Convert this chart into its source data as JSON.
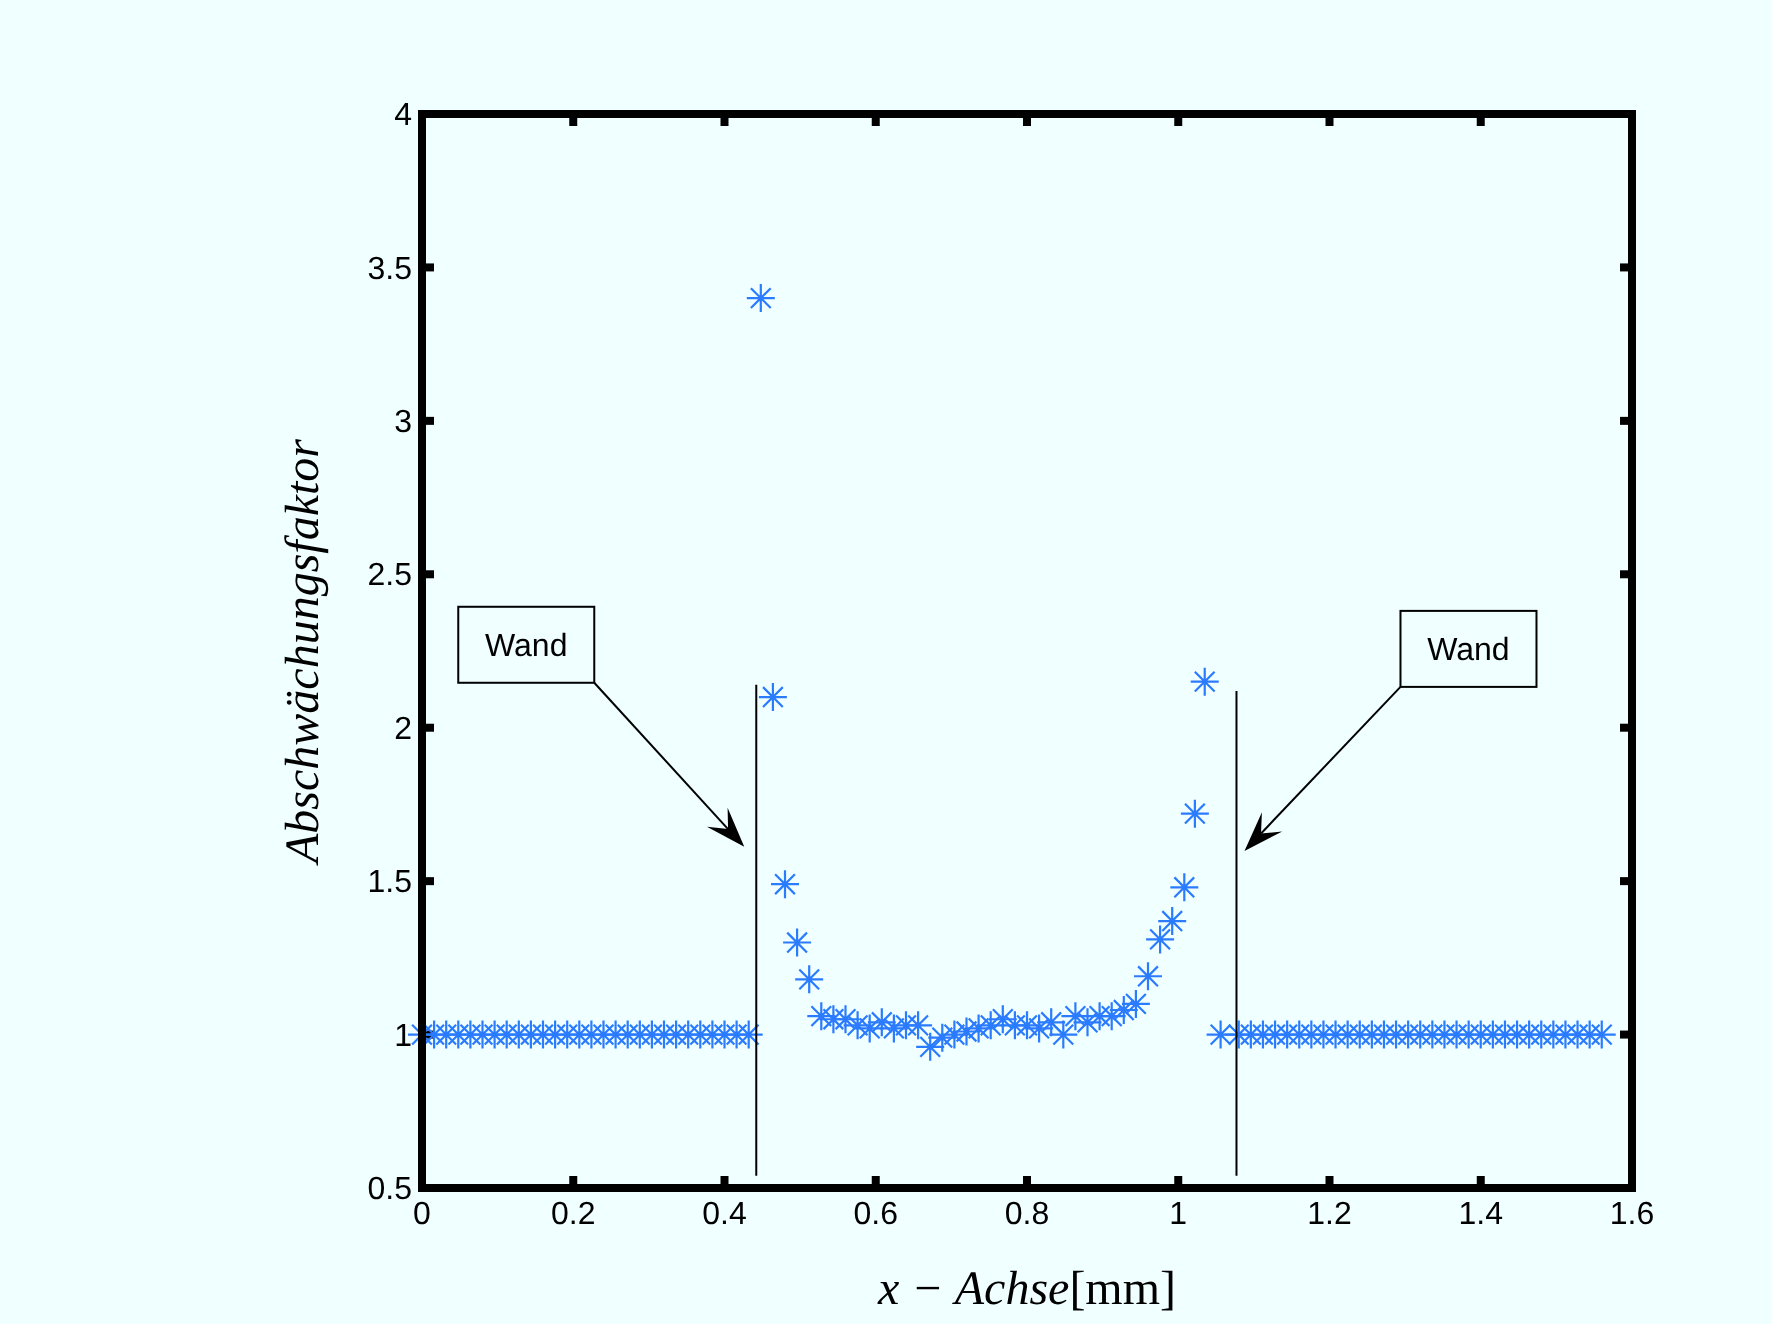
{
  "chart_data": {
    "type": "scatter",
    "xlabel": "x − Achse[mm]",
    "ylabel": "Abschwächungsfaktor",
    "xlim": [
      0,
      1.6
    ],
    "ylim": [
      0.5,
      4
    ],
    "xticks": [
      0,
      0.2,
      0.4,
      0.6,
      0.8,
      1,
      1.2,
      1.4,
      1.6
    ],
    "yticks": [
      0.5,
      1,
      1.5,
      2,
      2.5,
      3,
      3.5,
      4
    ],
    "grid": false,
    "marker": "cross",
    "series": [
      {
        "color": "#2b7bff",
        "x": [
          0,
          0.016,
          0.032,
          0.048,
          0.064,
          0.08,
          0.096,
          0.112,
          0.128,
          0.144,
          0.16,
          0.176,
          0.192,
          0.208,
          0.224,
          0.24,
          0.256,
          0.272,
          0.288,
          0.304,
          0.32,
          0.336,
          0.352,
          0.368,
          0.384,
          0.4,
          0.416,
          0.432,
          0.448,
          0.464,
          0.48,
          0.496,
          0.512,
          0.528,
          0.544,
          0.56,
          0.576,
          0.592,
          0.608,
          0.624,
          0.64,
          0.656,
          0.672,
          0.688,
          0.704,
          0.72,
          0.736,
          0.752,
          0.768,
          0.784,
          0.8,
          0.816,
          0.832,
          0.848,
          0.864,
          0.88,
          0.896,
          0.912,
          0.928,
          0.944,
          0.96,
          0.976,
          0.992,
          1.008,
          1.022,
          1.035,
          1.056,
          1.08,
          1.096,
          1.112,
          1.128,
          1.144,
          1.16,
          1.176,
          1.192,
          1.208,
          1.224,
          1.24,
          1.256,
          1.272,
          1.288,
          1.304,
          1.32,
          1.336,
          1.352,
          1.368,
          1.384,
          1.4,
          1.416,
          1.432,
          1.448,
          1.464,
          1.48,
          1.496,
          1.512,
          1.528,
          1.544,
          1.56
        ],
        "values": [
          1,
          1,
          1,
          1,
          1,
          1,
          1,
          1,
          1,
          1,
          1,
          1,
          1,
          1,
          1,
          1,
          1,
          1,
          1,
          1,
          1,
          1,
          1,
          1,
          1,
          1,
          1,
          1,
          3.4,
          2.1,
          1.49,
          1.3,
          1.18,
          1.06,
          1.05,
          1.05,
          1.03,
          1.02,
          1.04,
          1.02,
          1.03,
          1.03,
          0.96,
          0.99,
          1,
          1.01,
          1.02,
          1.03,
          1.05,
          1.03,
          1.03,
          1.02,
          1.04,
          1,
          1.06,
          1.04,
          1.06,
          1.06,
          1.08,
          1.1,
          1.19,
          1.31,
          1.37,
          1.48,
          1.72,
          2.15,
          1,
          1,
          1,
          1,
          1,
          1,
          1,
          1,
          1,
          1,
          1,
          1,
          1,
          1,
          1,
          1,
          1,
          1,
          1,
          1,
          1,
          1,
          1,
          1,
          1,
          1,
          1,
          1,
          1,
          1,
          1,
          1
        ]
      },
      {
        "type": "line",
        "color": "#000000",
        "marker": "none",
        "x": [
          0.442,
          0.442
        ],
        "values": [
          0.54,
          2.14
        ]
      },
      {
        "type": "line",
        "color": "#000000",
        "marker": "none",
        "x": [
          1.077,
          1.077
        ],
        "values": [
          0.54,
          2.12
        ]
      }
    ],
    "annotations": [
      "Wand",
      "Wand"
    ]
  }
}
